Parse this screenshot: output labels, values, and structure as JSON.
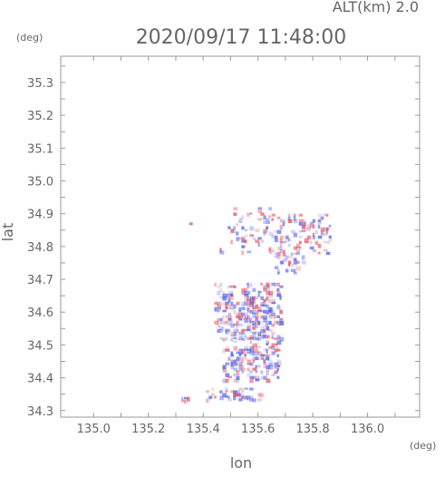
{
  "header": {
    "alt_label": "ALT(km) 2.0",
    "timestamp": "2020/09/17 11:48:00"
  },
  "colors": {
    "frame": "#999999",
    "text": "#666666",
    "positive": "#e05060",
    "negative": "#4a5ae0"
  },
  "chart_data": {
    "type": "heatmap",
    "title": "2020/09/17 11:48:00",
    "subtitle": "ALT(km) 2.0",
    "xlabel": "lon",
    "ylabel": "lat",
    "x_unit": "(deg)",
    "y_unit": "(deg)",
    "xlim": [
      134.88,
      136.19
    ],
    "ylim": [
      34.28,
      35.38
    ],
    "grid": false,
    "xticks": [
      135.0,
      135.1,
      135.2,
      135.3,
      135.4,
      135.5,
      135.6,
      135.7,
      135.8,
      135.9,
      136.0,
      136.1
    ],
    "xtick_labels": [
      {
        "value": 135.0,
        "label": "135.0"
      },
      {
        "value": 135.2,
        "label": "135.2"
      },
      {
        "value": 135.4,
        "label": "135.4"
      },
      {
        "value": 135.6,
        "label": "135.6"
      },
      {
        "value": 135.8,
        "label": "135.8"
      },
      {
        "value": 136.0,
        "label": "136.0"
      }
    ],
    "yticks": [
      34.3,
      34.35,
      34.4,
      34.45,
      34.5,
      34.55,
      34.6,
      34.65,
      34.7,
      34.75,
      34.8,
      34.85,
      34.9,
      34.95,
      35.0,
      35.05,
      35.1,
      35.15,
      35.2,
      35.25,
      35.3,
      35.35
    ],
    "ytick_labels": [
      {
        "value": 34.3,
        "label": "34.3"
      },
      {
        "value": 34.4,
        "label": "34.4"
      },
      {
        "value": 34.5,
        "label": "34.5"
      },
      {
        "value": 34.6,
        "label": "34.6"
      },
      {
        "value": 34.7,
        "label": "34.7"
      },
      {
        "value": 34.8,
        "label": "34.8"
      },
      {
        "value": 34.9,
        "label": "34.9"
      },
      {
        "value": 35.0,
        "label": "35.0"
      },
      {
        "value": 35.1,
        "label": "35.1"
      },
      {
        "value": 35.2,
        "label": "35.2"
      },
      {
        "value": 35.3,
        "label": "35.3"
      }
    ],
    "cell_size": [
      0.018,
      0.014
    ],
    "clusters": [
      {
        "lon": [
          135.44,
          135.68
        ],
        "lat": [
          34.52,
          34.69
        ],
        "density": 0.75,
        "seed": 11
      },
      {
        "lon": [
          135.47,
          135.67
        ],
        "lat": [
          34.39,
          34.53
        ],
        "density": 0.6,
        "seed": 23
      },
      {
        "lon": [
          135.41,
          135.61
        ],
        "lat": [
          34.33,
          34.37
        ],
        "density": 0.55,
        "seed": 37
      },
      {
        "lon": [
          135.45,
          135.66
        ],
        "lat": [
          34.78,
          34.92
        ],
        "density": 0.22,
        "seed": 41
      },
      {
        "lon": [
          135.64,
          135.86
        ],
        "lat": [
          34.78,
          34.9
        ],
        "density": 0.45,
        "seed": 53
      },
      {
        "lon": [
          135.66,
          135.76
        ],
        "lat": [
          34.72,
          34.79
        ],
        "density": 0.35,
        "seed": 67
      },
      {
        "lon": [
          135.33,
          135.36
        ],
        "lat": [
          34.87,
          34.89
        ],
        "density": 0.7,
        "seed": 71
      },
      {
        "lon": [
          135.32,
          135.35
        ],
        "lat": [
          34.33,
          34.35
        ],
        "density": 0.7,
        "seed": 79
      }
    ]
  }
}
